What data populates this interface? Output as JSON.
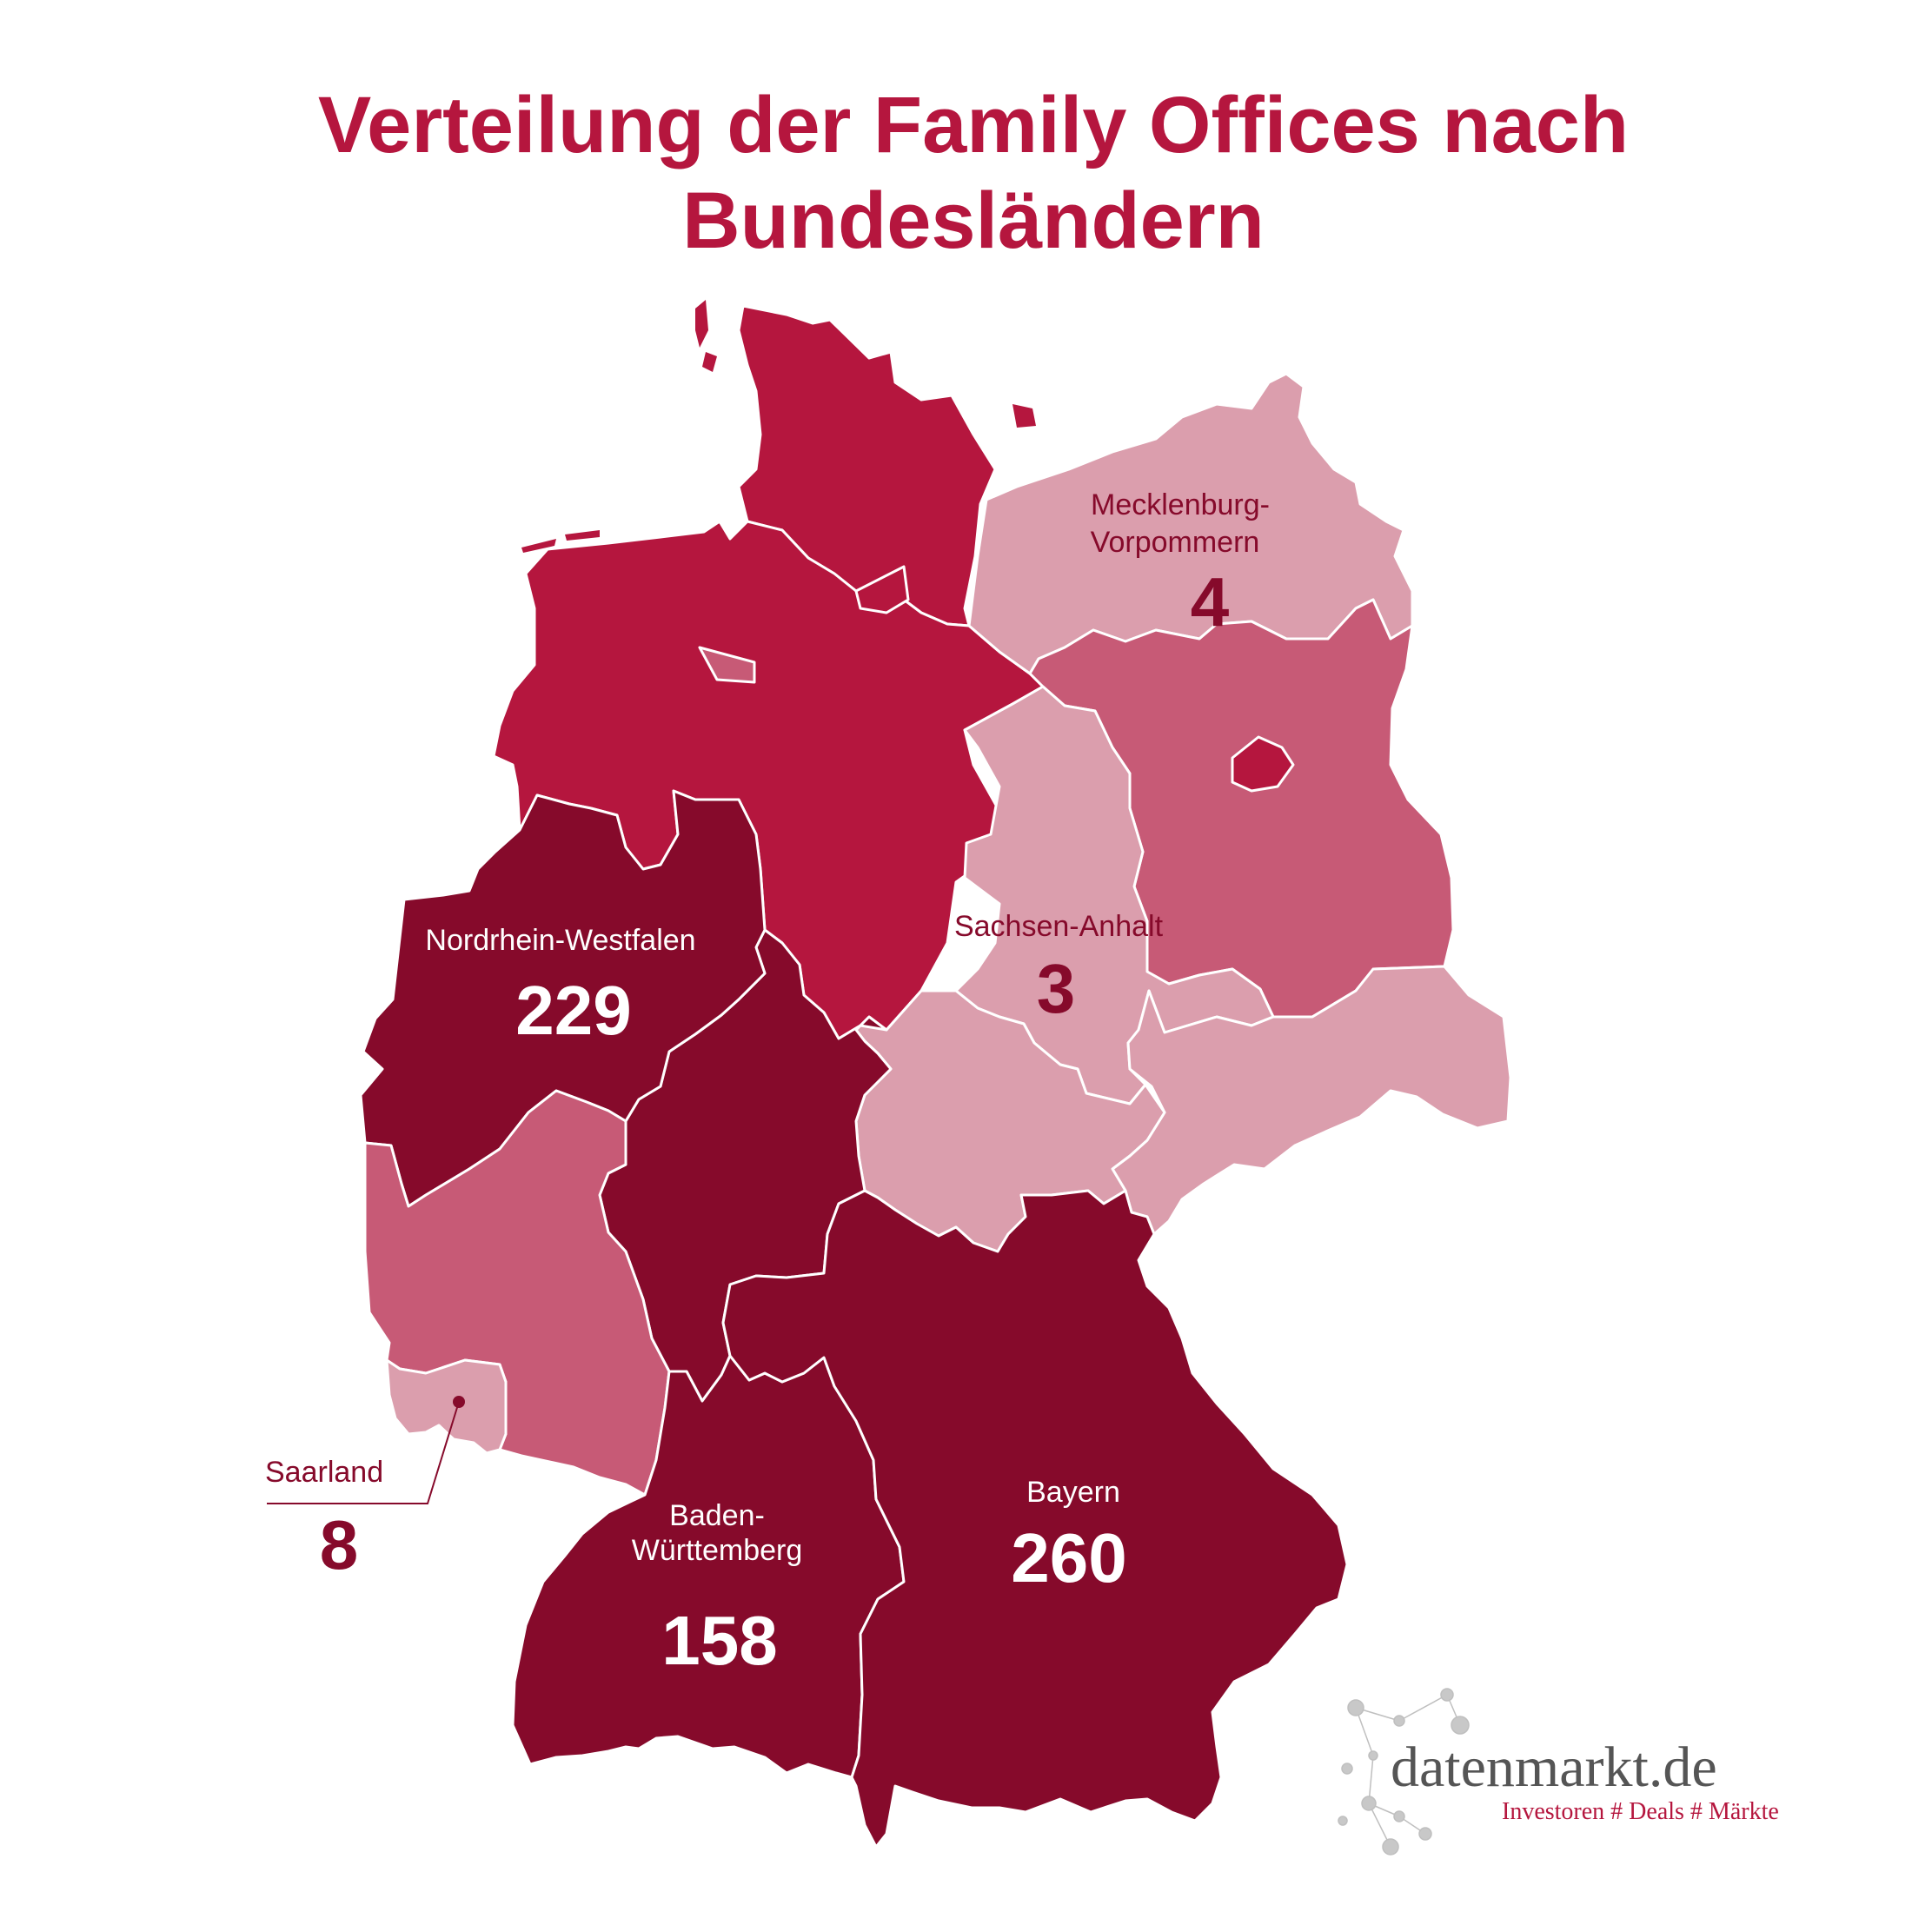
{
  "title": {
    "line1": "Verteilung der Family Offices nach",
    "line2": "Bundesländern"
  },
  "colors": {
    "title": "#b5163e",
    "dark": "#860a2b",
    "red": "#b5163e",
    "medium": "#c75a76",
    "light": "#db9ead",
    "leader": "#860a2b"
  },
  "regions": [
    {
      "id": "nordrhein-westfalen",
      "label": "Nordrhein-Westfalen",
      "value": "229"
    },
    {
      "id": "bayern",
      "label": "Bayern",
      "value": "260"
    },
    {
      "id": "baden-wuerttemberg",
      "label_line1": "Baden-",
      "label_line2": "Württemberg",
      "value": "158"
    },
    {
      "id": "mecklenburg-vorpommern",
      "label_line1": "Mecklenburg-",
      "label_line2": "Vorpommern",
      "value": "4"
    },
    {
      "id": "sachsen-anhalt",
      "label": "Sachsen-Anhalt",
      "value": "3"
    },
    {
      "id": "saarland",
      "label": "Saarland",
      "value": "8"
    }
  ],
  "logo": {
    "name": "datenmarkt.de",
    "tagline": "Investoren # Deals # Märkte"
  }
}
